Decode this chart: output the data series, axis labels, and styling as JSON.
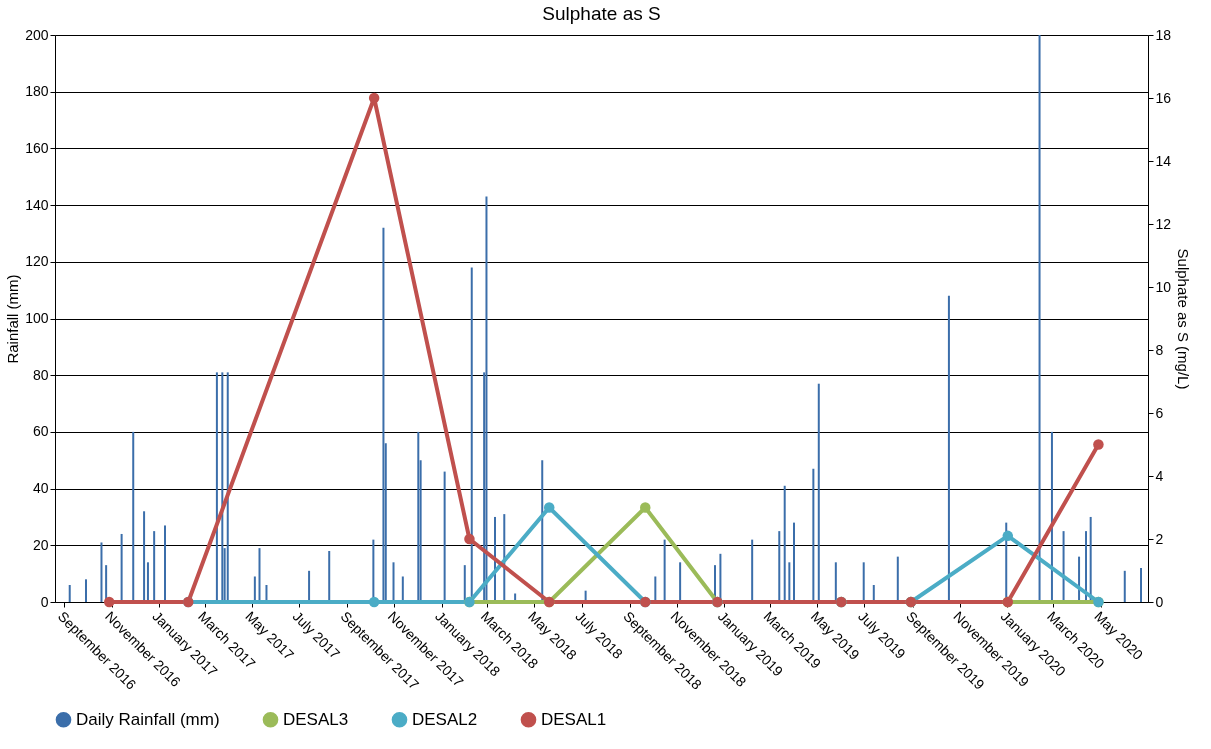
{
  "chart_data": {
    "type": "bar",
    "title": "Sulphate as S",
    "ylabel": "Rainfall (mm)",
    "y2label": "Sulphate as S (mg/L)",
    "xlim": [
      "2016-08-20",
      "2020-07-01"
    ],
    "xticks": [
      {
        "value": "2016-09-01",
        "label": "September 2016"
      },
      {
        "value": "2016-11-01",
        "label": "November 2016"
      },
      {
        "value": "2017-01-01",
        "label": "January 2017"
      },
      {
        "value": "2017-03-01",
        "label": "March 2017"
      },
      {
        "value": "2017-05-01",
        "label": "May 2017"
      },
      {
        "value": "2017-07-01",
        "label": "July 2017"
      },
      {
        "value": "2017-09-01",
        "label": "September 2017"
      },
      {
        "value": "2017-11-01",
        "label": "November 2017"
      },
      {
        "value": "2018-01-01",
        "label": "January 2018"
      },
      {
        "value": "2018-03-01",
        "label": "March 2018"
      },
      {
        "value": "2018-05-01",
        "label": "May 2018"
      },
      {
        "value": "2018-07-01",
        "label": "July 2018"
      },
      {
        "value": "2018-09-01",
        "label": "September 2018"
      },
      {
        "value": "2018-11-01",
        "label": "November 2018"
      },
      {
        "value": "2019-01-01",
        "label": "January 2019"
      },
      {
        "value": "2019-03-01",
        "label": "March 2019"
      },
      {
        "value": "2019-05-01",
        "label": "May 2019"
      },
      {
        "value": "2019-07-01",
        "label": "July 2019"
      },
      {
        "value": "2019-09-01",
        "label": "September 2019"
      },
      {
        "value": "2019-11-01",
        "label": "November 2019"
      },
      {
        "value": "2020-01-01",
        "label": "January 2020"
      },
      {
        "value": "2020-03-01",
        "label": "March 2020"
      },
      {
        "value": "2020-05-01",
        "label": "May 2020"
      }
    ],
    "ylim": [
      0,
      200
    ],
    "yticks": [
      0,
      20,
      40,
      60,
      80,
      100,
      120,
      140,
      160,
      180,
      200
    ],
    "y2lim": [
      0,
      18
    ],
    "y2ticks": [
      0,
      2,
      4,
      6,
      8,
      10,
      12,
      14,
      16,
      18
    ],
    "x": [
      "2016-10-29",
      "2017-02-08",
      "2017-10-06",
      "2018-02-06",
      "2018-05-20",
      "2018-09-21",
      "2018-12-23",
      "2019-06-01",
      "2019-08-30",
      "2020-01-02",
      "2020-04-28"
    ],
    "series": [
      {
        "name": "Daily Rainfall (mm)",
        "color": "#3b6eaa",
        "x": [
          "2016-09-08",
          "2016-09-29",
          "2016-10-19",
          "2016-10-25",
          "2016-11-14",
          "2016-11-29",
          "2016-12-13",
          "2016-12-18",
          "2016-12-26",
          "2017-01-09",
          "2017-03-17",
          "2017-03-24",
          "2017-03-27",
          "2017-03-31",
          "2017-05-05",
          "2017-05-11",
          "2017-05-20",
          "2017-07-14",
          "2017-08-09",
          "2017-10-05",
          "2017-10-18",
          "2017-10-21",
          "2017-10-31",
          "2017-11-12",
          "2017-12-02",
          "2017-12-05",
          "2018-01-05",
          "2018-01-31",
          "2018-02-09",
          "2018-02-25",
          "2018-02-28",
          "2018-03-11",
          "2018-03-23",
          "2018-04-06",
          "2018-05-11",
          "2018-07-06",
          "2018-10-04",
          "2018-10-16",
          "2018-11-05",
          "2018-12-20",
          "2018-12-27",
          "2019-02-06",
          "2019-03-13",
          "2019-03-20",
          "2019-03-26",
          "2019-04-01",
          "2019-04-26",
          "2019-05-03",
          "2019-05-25",
          "2019-06-30",
          "2019-07-13",
          "2019-08-13",
          "2019-10-18",
          "2019-12-31",
          "2020-02-12",
          "2020-02-28",
          "2020-03-14",
          "2020-04-03",
          "2020-04-12",
          "2020-04-18",
          "2020-06-01",
          "2020-06-22"
        ],
        "values": [
          6,
          8,
          21,
          13,
          24,
          60,
          32,
          14,
          25,
          27,
          81,
          81,
          19,
          81,
          9,
          19,
          6,
          11,
          18,
          22,
          132,
          56,
          14,
          9,
          60,
          50,
          46,
          13,
          118,
          81,
          143,
          30,
          31,
          3,
          50,
          4,
          9,
          22,
          14,
          13,
          17,
          22,
          25,
          41,
          14,
          28,
          47,
          77,
          14,
          14,
          6,
          16,
          108,
          28,
          200,
          60,
          25,
          16,
          25,
          30,
          11,
          12
        ]
      },
      {
        "name": "DESAL3",
        "type": "line",
        "axis": "y2",
        "color": "#9bbb59",
        "values": [
          null,
          null,
          null,
          0,
          0,
          3,
          0,
          0,
          0,
          0,
          0
        ]
      },
      {
        "name": "DESAL2",
        "type": "line",
        "axis": "y2",
        "color": "#4bacc6",
        "values": [
          null,
          0,
          0,
          0,
          3,
          0,
          0,
          0,
          0,
          2.1,
          0
        ]
      },
      {
        "name": "DESAL1",
        "type": "line",
        "axis": "y2",
        "color": "#c0504d",
        "values": [
          0,
          0,
          16,
          2,
          0,
          0,
          0,
          0,
          0,
          0,
          5
        ]
      }
    ],
    "grid": "y",
    "legend": "bottom",
    "marker": "circle",
    "line_style": "solid"
  }
}
